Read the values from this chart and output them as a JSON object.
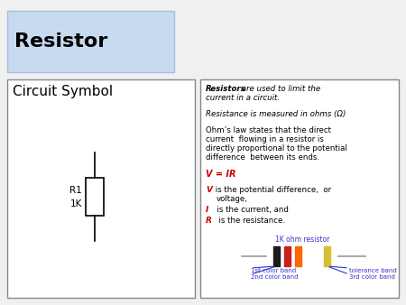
{
  "bg_color": "#f0f0f0",
  "top_left_bg_top": "#d8e8f8",
  "top_left_bg_bot": "#b8cce4",
  "title_text": "Resistor",
  "title_fontsize": 16,
  "circuit_symbol_title": "Circuit Symbol",
  "circuit_symbol_fontsize": 11,
  "label_r1": "R1",
  "label_1k": "1K",
  "resistor_img_title": "1K ohm resistor",
  "band_label_1": "1st color band",
  "band_label_2": "2nd color band",
  "band_label_tol": "tolerance band",
  "band_label_3": "3rd color band",
  "body_color": "#c8a84b",
  "band1_color": "#1a1a1a",
  "band2_color": "#c8201a",
  "band3_color": "#ff6600",
  "band_tol_color": "#d4c030",
  "wire_color": "#999999",
  "text_color": "#000000",
  "blue_text": "#3333cc",
  "red_text": "#cc0000",
  "box_edge": "#888888"
}
